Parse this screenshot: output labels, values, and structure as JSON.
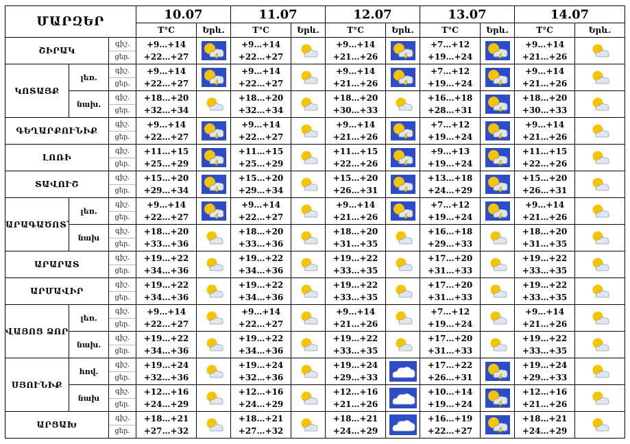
{
  "header": {
    "title": "ՄԱՐԶԵՐ",
    "dates": [
      "10.07",
      "11.07",
      "12.07",
      "13.07",
      "14.07"
    ],
    "temp_label": "T°C",
    "weather_label": "Երև."
  },
  "rows": [
    {
      "region": "ՇԻՐԱԿ",
      "zone": "",
      "day_label": "ցեր.",
      "night_label": "գիշ.",
      "days": [
        {
          "night": "+9…+14",
          "day": "+22…+27",
          "icon": "thunderstorm-icon"
        },
        {
          "night": "+9…+14",
          "day": "+22…+27",
          "icon": "sun-cloud-icon"
        },
        {
          "night": "+9…+14",
          "day": "+21…+26",
          "icon": "thunderstorm-icon"
        },
        {
          "night": "+7…+12",
          "day": "+19…+24",
          "icon": "thunderstorm-icon"
        },
        {
          "night": "+9…+14",
          "day": "+21…+26",
          "icon": "sun-cloud-icon"
        }
      ]
    },
    {
      "region": "ԿՈՏԱՅՔ",
      "zone": "լեռ.",
      "day_label": "ցեր.",
      "night_label": "գիշ.",
      "days": [
        {
          "night": "+9…+14",
          "day": "+22…+27",
          "icon": "thunderstorm-icon"
        },
        {
          "night": "+9…+14",
          "day": "+22…+27",
          "icon": "sun-cloud-icon"
        },
        {
          "night": "+9…+14",
          "day": "+21…+26",
          "icon": "thunderstorm-icon"
        },
        {
          "night": "+7…+12",
          "day": "+19…+24",
          "icon": "thunderstorm-icon"
        },
        {
          "night": "+9…+14",
          "day": "+21…+26",
          "icon": "sun-cloud-icon"
        }
      ]
    },
    {
      "region": "",
      "zone": "նախ.",
      "day_label": "ցեր.",
      "night_label": "գիշ.",
      "days": [
        {
          "night": "+18…+20",
          "day": "+32…+34",
          "icon": "sun-cloud-icon"
        },
        {
          "night": "+18…+20",
          "day": "+32…+34",
          "icon": "sun-cloud-icon"
        },
        {
          "night": "+18…+20",
          "day": "+30…+33",
          "icon": "sun-cloud-icon"
        },
        {
          "night": "+16…+18",
          "day": "+28…+31",
          "icon": "thunderstorm-icon"
        },
        {
          "night": "+18…+20",
          "day": "+30…+33",
          "icon": "sun-cloud-icon"
        }
      ]
    },
    {
      "region": "ԳԵՂԱՐՔՈՒՆԻՔ",
      "zone": "",
      "day_label": "ցեր.",
      "night_label": "գիշ.",
      "days": [
        {
          "night": "+9…+14",
          "day": "+22…+27",
          "icon": "thunderstorm-icon"
        },
        {
          "night": "+9…+14",
          "day": "+22…+27",
          "icon": "sun-cloud-icon"
        },
        {
          "night": "+9…+14",
          "day": "+21…+26",
          "icon": "thunderstorm-icon"
        },
        {
          "night": "+7…+12",
          "day": "+19…+24",
          "icon": "thunderstorm-icon"
        },
        {
          "night": "+9…+14",
          "day": "+21…+26",
          "icon": "sun-cloud-icon"
        }
      ]
    },
    {
      "region": "ԼՈՌԻ",
      "zone": "",
      "day_label": "ցեր.",
      "night_label": "գիշ.",
      "days": [
        {
          "night": "+11…+15",
          "day": "+25…+29",
          "icon": "thunderstorm-icon"
        },
        {
          "night": "+11…+15",
          "day": "+25…+29",
          "icon": "sun-cloud-icon"
        },
        {
          "night": "+11…+15",
          "day": "+22…+26",
          "icon": "thunderstorm-icon"
        },
        {
          "night": "+9…+13",
          "day": "+19…+24",
          "icon": "thunderstorm-icon"
        },
        {
          "night": "+11…+15",
          "day": "+22…+26",
          "icon": "sun-cloud-icon"
        }
      ]
    },
    {
      "region": "ՏԱՎՈՒՇ",
      "zone": "",
      "day_label": "ցեր.",
      "night_label": "գիշ.",
      "days": [
        {
          "night": "+15…+20",
          "day": "+29…+34",
          "icon": "thunderstorm-icon"
        },
        {
          "night": "+15…+20",
          "day": "+29…+34",
          "icon": "sun-cloud-icon"
        },
        {
          "night": "+15…+20",
          "day": "+26…+31",
          "icon": "thunderstorm-icon"
        },
        {
          "night": "+13…+18",
          "day": "+24…+29",
          "icon": "thunderstorm-icon"
        },
        {
          "night": "+15…+20",
          "day": "+26…+31",
          "icon": "sun-cloud-icon"
        }
      ]
    },
    {
      "region": "ԱՐԱԳԱԾՈՏՆ",
      "zone": "լեռ.",
      "day_label": "ցեր.",
      "night_label": "գիշ.",
      "days": [
        {
          "night": "+9…+14",
          "day": "+22…+27",
          "icon": "thunderstorm-icon"
        },
        {
          "night": "+9…+14",
          "day": "+22…+27",
          "icon": "sun-cloud-icon"
        },
        {
          "night": "+9…+14",
          "day": "+21…+26",
          "icon": "thunderstorm-icon"
        },
        {
          "night": "+7…+12",
          "day": "+19…+24",
          "icon": "thunderstorm-icon"
        },
        {
          "night": "+9…+14",
          "day": "+21…+26",
          "icon": "sun-cloud-icon"
        }
      ]
    },
    {
      "region": "",
      "zone": "նախ",
      "day_label": "ցեր.",
      "night_label": "գիշ.",
      "days": [
        {
          "night": "+18…+20",
          "day": "+33…+36",
          "icon": "sun-cloud-icon"
        },
        {
          "night": "+18…+20",
          "day": "+33…+36",
          "icon": "sun-cloud-icon"
        },
        {
          "night": "+18…+20",
          "day": "+31…+35",
          "icon": "sun-cloud-icon"
        },
        {
          "night": "+16…+18",
          "day": "+29…+33",
          "icon": "sun-cloud-icon"
        },
        {
          "night": "+18…+20",
          "day": "+31…+35",
          "icon": "sun-cloud-icon"
        }
      ]
    },
    {
      "region": "ԱՐԱՐԱՏ",
      "zone": "",
      "day_label": "ցեր.",
      "night_label": "գիշ.",
      "days": [
        {
          "night": "+19…+22",
          "day": "+34…+36",
          "icon": "sun-cloud-icon"
        },
        {
          "night": "+19…+22",
          "day": "+34…+36",
          "icon": "sun-cloud-icon"
        },
        {
          "night": "+19…+22",
          "day": "+33…+35",
          "icon": "sun-cloud-icon"
        },
        {
          "night": "+17…+20",
          "day": "+31…+33",
          "icon": "sun-cloud-icon"
        },
        {
          "night": "+19…+22",
          "day": "+33…+35",
          "icon": "sun-cloud-icon"
        }
      ]
    },
    {
      "region": "ԱՐՄԱՎԻՐ",
      "zone": "",
      "day_label": "ցեր.",
      "night_label": "գիշ.",
      "days": [
        {
          "night": "+19…+22",
          "day": "+34…+36",
          "icon": "sun-cloud-icon"
        },
        {
          "night": "+19…+22",
          "day": "+34…+36",
          "icon": "sun-cloud-icon"
        },
        {
          "night": "+19…+22",
          "day": "+33…+35",
          "icon": "sun-cloud-icon"
        },
        {
          "night": "+17…+20",
          "day": "+31…+33",
          "icon": "sun-cloud-icon"
        },
        {
          "night": "+19…+22",
          "day": "+33…+35",
          "icon": "sun-cloud-icon"
        }
      ]
    },
    {
      "region": "ՎԱՅՈՑ ՁՈՐ",
      "zone": "լեռ.",
      "day_label": "ցեր.",
      "night_label": "գիշ.",
      "days": [
        {
          "night": "+9…+14",
          "day": "+22…+27",
          "icon": "sun-cloud-icon"
        },
        {
          "night": "+9…+14",
          "day": "+22…+27",
          "icon": "sun-cloud-icon"
        },
        {
          "night": "+9…+14",
          "day": "+21…+26",
          "icon": "sun-cloud-icon"
        },
        {
          "night": "+7…+12",
          "day": "+19…+24",
          "icon": "sun-cloud-icon"
        },
        {
          "night": "+9…+14",
          "day": "+21…+26",
          "icon": "sun-cloud-icon"
        }
      ]
    },
    {
      "region": "",
      "zone": "նախ.",
      "day_label": "ցեր.",
      "night_label": "գիշ.",
      "days": [
        {
          "night": "+19…+22",
          "day": "+34…+36",
          "icon": "sun-cloud-icon"
        },
        {
          "night": "+19…+22",
          "day": "+34…+36",
          "icon": "sun-cloud-icon"
        },
        {
          "night": "+19…+22",
          "day": "+33…+35",
          "icon": "sun-cloud-icon"
        },
        {
          "night": "+17…+20",
          "day": "+31…+33",
          "icon": "sun-cloud-icon"
        },
        {
          "night": "+19…+22",
          "day": "+33…+35",
          "icon": "sun-cloud-icon"
        }
      ]
    },
    {
      "region": "ՍՅՈՒՆԻՔ",
      "zone": "հով.",
      "day_label": "ցեր.",
      "night_label": "գիշ.",
      "days": [
        {
          "night": "+19…+24",
          "day": "+32…+36",
          "icon": "sun-cloud-icon"
        },
        {
          "night": "+19…+24",
          "day": "+32…+36",
          "icon": "sun-cloud-icon"
        },
        {
          "night": "+19…+24",
          "day": "+29…+33",
          "icon": "cloud-icon"
        },
        {
          "night": "+17…+22",
          "day": "+26…+31",
          "icon": "thunderstorm-icon"
        },
        {
          "night": "+19…+24",
          "day": "+29…+33",
          "icon": "sun-cloud-icon"
        }
      ]
    },
    {
      "region": "",
      "zone": "նախ",
      "day_label": "ցեր.",
      "night_label": "գիշ.",
      "days": [
        {
          "night": "+12…+16",
          "day": "+24…+29",
          "icon": "sun-cloud-icon"
        },
        {
          "night": "+12…+16",
          "day": "+24…+29",
          "icon": "sun-cloud-icon"
        },
        {
          "night": "+12…+16",
          "day": "+21…+26",
          "icon": "cloud-icon"
        },
        {
          "night": "+10…+14",
          "day": "+19…+24",
          "icon": "thunderstorm-icon"
        },
        {
          "night": "+12…+16",
          "day": "+21…+26",
          "icon": "sun-cloud-icon"
        }
      ]
    },
    {
      "region": "ԱՐՑԱԽ",
      "zone": "",
      "day_label": "ցեր.",
      "night_label": "գիշ.",
      "days": [
        {
          "night": "+18…+21",
          "day": "+27…+32",
          "icon": "sun-cloud-icon"
        },
        {
          "night": "+18…+21",
          "day": "+27…+32",
          "icon": "sun-cloud-icon"
        },
        {
          "night": "+18…+21",
          "day": "+24…+29",
          "icon": "cloud-icon"
        },
        {
          "night": "+16…+19",
          "day": "+22…+27",
          "icon": "thunderstorm-icon"
        },
        {
          "night": "+18…+21",
          "day": "+24…+29",
          "icon": "sun-cloud-icon"
        }
      ]
    }
  ],
  "row_layout": [
    {
      "kind": "single"
    },
    {
      "kind": "group-first",
      "span": 2
    },
    {
      "kind": "group-rest"
    },
    {
      "kind": "single"
    },
    {
      "kind": "single"
    },
    {
      "kind": "single"
    },
    {
      "kind": "group-first",
      "span": 2
    },
    {
      "kind": "group-rest"
    },
    {
      "kind": "single"
    },
    {
      "kind": "single"
    },
    {
      "kind": "group-first",
      "span": 2
    },
    {
      "kind": "group-rest"
    },
    {
      "kind": "group-first",
      "span": 2
    },
    {
      "kind": "group-rest"
    },
    {
      "kind": "single"
    }
  ],
  "colors": {
    "border": "#000000",
    "sun": "#f5c400",
    "storm_sky": "#2f4cc7",
    "cloud": "#dfe6f0",
    "bolt": "#f7e000"
  }
}
